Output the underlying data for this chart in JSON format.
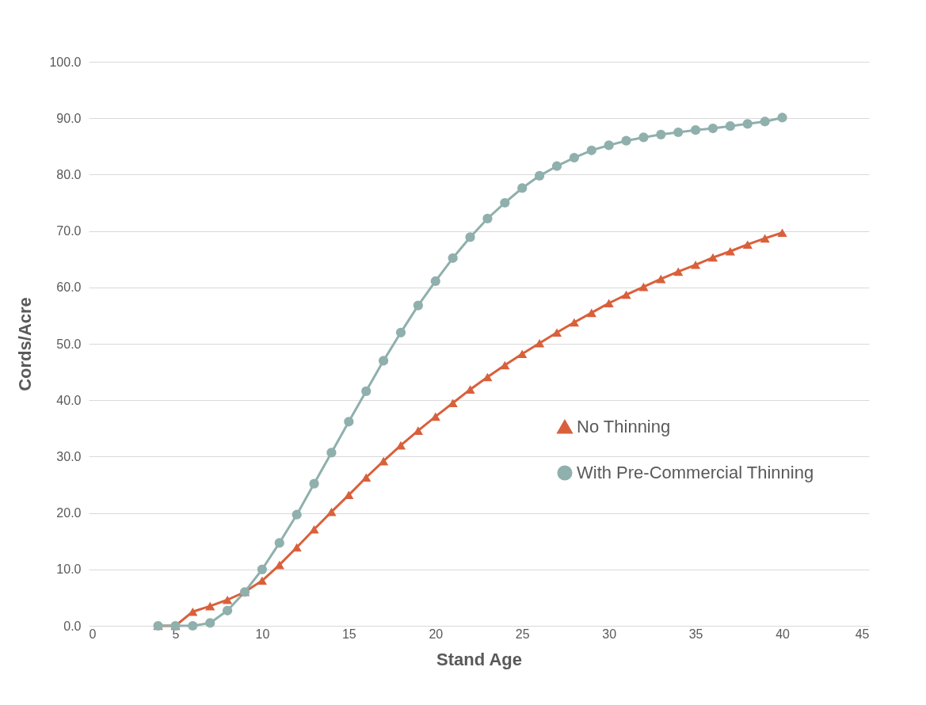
{
  "chart_data": {
    "type": "line",
    "xlabel": "Stand Age",
    "ylabel": "Cords/Acre",
    "x": [
      4,
      5,
      6,
      7,
      8,
      9,
      10,
      11,
      12,
      13,
      14,
      15,
      16,
      17,
      18,
      19,
      20,
      21,
      22,
      23,
      24,
      25,
      26,
      27,
      28,
      29,
      30,
      31,
      32,
      33,
      34,
      35,
      36,
      37,
      38,
      39,
      40
    ],
    "series": [
      {
        "name": "No Thinning",
        "color": "#d9603b",
        "marker": "triangle",
        "values": [
          0,
          0,
          2.5,
          3.5,
          4.6,
          6.0,
          8.0,
          10.8,
          13.9,
          17.1,
          20.2,
          23.2,
          26.3,
          29.2,
          32.0,
          34.6,
          37.1,
          39.5,
          41.9,
          44.1,
          46.2,
          48.2,
          50.1,
          52.0,
          53.8,
          55.5,
          57.2,
          58.7,
          60.1,
          61.5,
          62.8,
          64.0,
          65.3,
          66.4,
          67.6,
          68.7,
          69.7
        ]
      },
      {
        "name": "With Pre-Commercial Thinning",
        "color": "#8fb0ad",
        "marker": "circle",
        "values": [
          0,
          0,
          0,
          0.5,
          2.7,
          6.0,
          10.0,
          14.7,
          19.7,
          25.2,
          30.7,
          36.2,
          41.6,
          47.0,
          52.0,
          56.8,
          61.1,
          65.2,
          68.9,
          72.2,
          75.0,
          77.6,
          79.8,
          81.5,
          83.0,
          84.3,
          85.2,
          86.0,
          86.6,
          87.1,
          87.5,
          87.9,
          88.2,
          88.6,
          89.0,
          89.4,
          90.1
        ]
      }
    ],
    "xlim": [
      0,
      45
    ],
    "xticks": [
      0,
      5,
      10,
      15,
      20,
      25,
      30,
      35,
      40,
      45
    ],
    "ylim": [
      0,
      100
    ],
    "yticks": [
      {
        "value": 0,
        "label": "0.0"
      },
      {
        "value": 10,
        "label": "10.0"
      },
      {
        "value": 20,
        "label": "20.0"
      },
      {
        "value": 30,
        "label": "30.0"
      },
      {
        "value": 40,
        "label": "40.0"
      },
      {
        "value": 50,
        "label": "50.0"
      },
      {
        "value": 60,
        "label": "60.0"
      },
      {
        "value": 70,
        "label": "70.0"
      },
      {
        "value": 80,
        "label": "80.0"
      },
      {
        "value": 90,
        "label": "90.0"
      },
      {
        "value": 100,
        "label": "100.0"
      }
    ],
    "grid": "y",
    "legend": "right",
    "line_style": "solid"
  }
}
